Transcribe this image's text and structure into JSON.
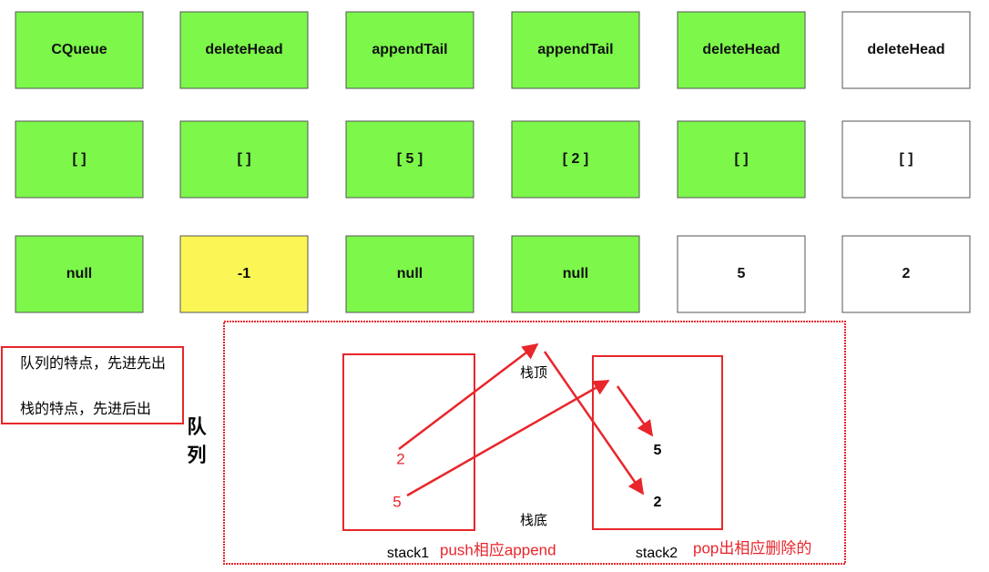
{
  "grid": [
    [
      {
        "text": "CQueue",
        "fill": "#7cf74a"
      },
      {
        "text": "deleteHead",
        "fill": "#7cf74a"
      },
      {
        "text": "appendTail",
        "fill": "#7cf74a"
      },
      {
        "text": "appendTail",
        "fill": "#7cf74a"
      },
      {
        "text": "deleteHead",
        "fill": "#7cf74a"
      },
      {
        "text": "deleteHead",
        "fill": "#ffffff"
      }
    ],
    [
      {
        "text": "[ ]",
        "fill": "#7cf74a"
      },
      {
        "text": "[ ]",
        "fill": "#7cf74a"
      },
      {
        "text": "[ 5 ]",
        "fill": "#7cf74a"
      },
      {
        "text": "[ 2 ]",
        "fill": "#7cf74a"
      },
      {
        "text": "[ ]",
        "fill": "#7cf74a"
      },
      {
        "text": "[ ]",
        "fill": "#ffffff"
      }
    ],
    [
      {
        "text": "null",
        "fill": "#7cf74a"
      },
      {
        "text": "-1",
        "fill": "#fbf655"
      },
      {
        "text": "null",
        "fill": "#7cf74a"
      },
      {
        "text": "null",
        "fill": "#7cf74a"
      },
      {
        "text": "5",
        "fill": "#ffffff"
      },
      {
        "text": "2",
        "fill": "#ffffff"
      }
    ]
  ],
  "note": {
    "lines": [
      "队列的特点，先进先出",
      "栈的特点，先进后出"
    ]
  },
  "side_label": [
    "队",
    "列"
  ],
  "stack_top": "栈顶",
  "stack_bottom": "栈底",
  "stack1": {
    "name": "stack1",
    "items": [
      "2",
      "5"
    ],
    "caption": "push相应append"
  },
  "stack2": {
    "name": "stack2",
    "items": [
      "5",
      "2"
    ],
    "caption": "pop出相应删除的"
  }
}
